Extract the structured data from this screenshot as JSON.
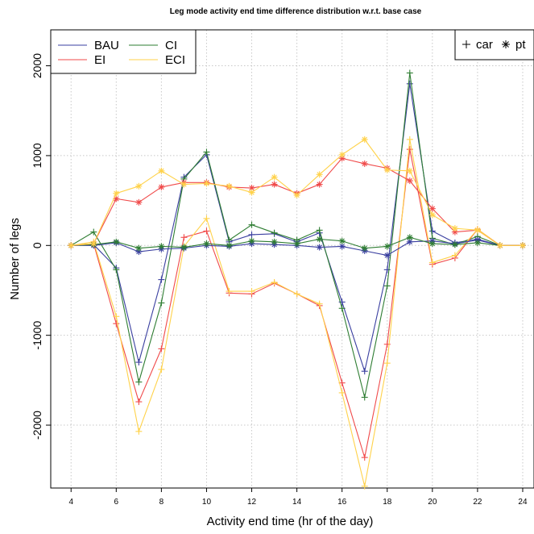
{
  "chart_data": {
    "type": "line",
    "title": "Leg mode activity end time difference distribution w.r.t. base case",
    "xlabel": "Activity end time (hr of the day)",
    "ylabel": "Number of legs",
    "xlim": [
      3.1,
      24.5
    ],
    "ylim": [
      -2700,
      2400
    ],
    "x_ticks": [
      4,
      6,
      8,
      10,
      12,
      14,
      16,
      18,
      20,
      22,
      24
    ],
    "y_ticks": [
      -2000,
      -1000,
      0,
      1000,
      2000
    ],
    "grid": true,
    "legend_scenarios": {
      "position": "top-left",
      "entries": [
        "BAU",
        "CI",
        "EI",
        "ECI"
      ]
    },
    "legend_modes": {
      "position": "top-right",
      "entries": [
        {
          "symbol": "+",
          "label": "car"
        },
        {
          "symbol": "*",
          "label": "pt"
        }
      ]
    },
    "x": [
      4,
      5,
      6,
      7,
      8,
      9,
      10,
      11,
      12,
      13,
      14,
      15,
      16,
      17,
      18,
      19,
      20,
      21,
      22,
      23,
      24
    ],
    "series": [
      {
        "name": "BAU",
        "mode": "car",
        "color": "#3a3fa0",
        "marker": "+",
        "values": [
          0,
          10,
          -250,
          -1300,
          -380,
          760,
          1010,
          40,
          120,
          130,
          40,
          140,
          -630,
          -1400,
          -270,
          1800,
          160,
          30,
          70,
          0,
          0
        ]
      },
      {
        "name": "CI",
        "mode": "car",
        "color": "#2e7d32",
        "marker": "+",
        "values": [
          0,
          150,
          -270,
          -1520,
          -640,
          740,
          1040,
          60,
          230,
          140,
          60,
          170,
          -700,
          -1690,
          -450,
          1920,
          80,
          10,
          100,
          0,
          0
        ]
      },
      {
        "name": "EI",
        "mode": "car",
        "color": "#f04a4a",
        "marker": "+",
        "values": [
          0,
          20,
          -870,
          -1740,
          -1150,
          90,
          160,
          -530,
          -540,
          -420,
          -540,
          -670,
          -1530,
          -2360,
          -1100,
          1070,
          -210,
          -140,
          180,
          0,
          0
        ]
      },
      {
        "name": "ECI",
        "mode": "car",
        "color": "#ffd24a",
        "marker": "+",
        "values": [
          0,
          40,
          -790,
          -2070,
          -1380,
          -10,
          300,
          -510,
          -510,
          -410,
          -540,
          -650,
          -1640,
          -2680,
          -1310,
          1180,
          -190,
          -110,
          180,
          0,
          0
        ]
      },
      {
        "name": "BAU",
        "mode": "pt",
        "color": "#3a3fa0",
        "marker": "*",
        "values": [
          0,
          0,
          30,
          -70,
          -40,
          -30,
          0,
          -10,
          20,
          10,
          0,
          -20,
          -10,
          -60,
          -110,
          40,
          50,
          20,
          60,
          0,
          0
        ]
      },
      {
        "name": "CI",
        "mode": "pt",
        "color": "#2e7d32",
        "marker": "*",
        "values": [
          0,
          10,
          40,
          -30,
          -10,
          -20,
          20,
          0,
          50,
          40,
          20,
          70,
          50,
          -30,
          -10,
          90,
          20,
          10,
          30,
          0,
          0
        ]
      },
      {
        "name": "EI",
        "mode": "pt",
        "color": "#f04a4a",
        "marker": "*",
        "values": [
          0,
          20,
          520,
          480,
          650,
          700,
          700,
          650,
          640,
          680,
          580,
          680,
          970,
          910,
          860,
          720,
          410,
          150,
          170,
          0,
          0
        ]
      },
      {
        "name": "ECI",
        "mode": "pt",
        "color": "#ffd24a",
        "marker": "*",
        "values": [
          0,
          20,
          580,
          660,
          830,
          680,
          690,
          660,
          590,
          760,
          560,
          790,
          1010,
          1180,
          840,
          830,
          340,
          190,
          170,
          0,
          0
        ]
      }
    ]
  }
}
